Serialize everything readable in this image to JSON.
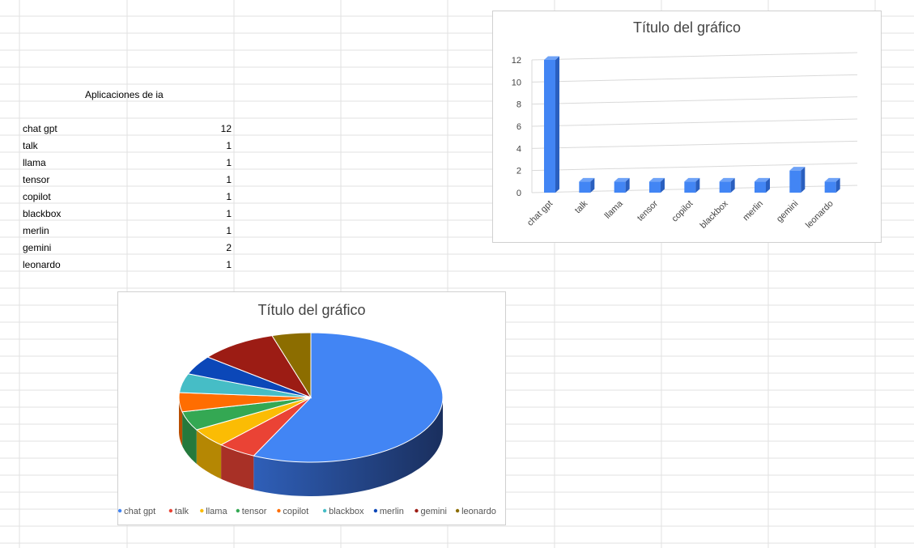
{
  "sheet": {
    "header_label": "Aplicaciones de ia",
    "rows": [
      {
        "name": "chat gpt",
        "value": "12"
      },
      {
        "name": "talk",
        "value": "1"
      },
      {
        "name": "llama",
        "value": "1"
      },
      {
        "name": "tensor",
        "value": "1"
      },
      {
        "name": "copilot",
        "value": "1"
      },
      {
        "name": "blackbox",
        "value": "1"
      },
      {
        "name": "merlin",
        "value": "1"
      },
      {
        "name": "gemini",
        "value": "2"
      },
      {
        "name": "leonardo",
        "value": "1"
      }
    ]
  },
  "chart_data": [
    {
      "type": "bar",
      "title": "Título del gráfico",
      "categories": [
        "chat gpt",
        "talk",
        "llama",
        "tensor",
        "copilot",
        "blackbox",
        "merlin",
        "gemini",
        "leonardo"
      ],
      "values": [
        12,
        1,
        1,
        1,
        1,
        1,
        1,
        2,
        1
      ],
      "y_ticks": [
        "0",
        "2",
        "4",
        "6",
        "8",
        "10",
        "12"
      ],
      "ylim": [
        0,
        12
      ],
      "grid": true,
      "legend": "none",
      "style": "3d",
      "colors": {
        "bar": "#4285f4",
        "bar_side": "#2a5fbf",
        "bar_top": "#6fa3f7"
      }
    },
    {
      "type": "pie",
      "title": "Título del gráfico",
      "categories": [
        "chat gpt",
        "talk",
        "llama",
        "tensor",
        "copilot",
        "blackbox",
        "merlin",
        "gemini",
        "leonardo"
      ],
      "values": [
        12,
        1,
        1,
        1,
        1,
        1,
        1,
        2,
        1
      ],
      "legend": "bottom",
      "style": "3d",
      "colors": [
        "#4285f4",
        "#ea4335",
        "#fbbc04",
        "#34a853",
        "#ff6d01",
        "#46bdc6",
        "#0b47b8",
        "#9c1c14",
        "#8c6d00"
      ]
    }
  ]
}
